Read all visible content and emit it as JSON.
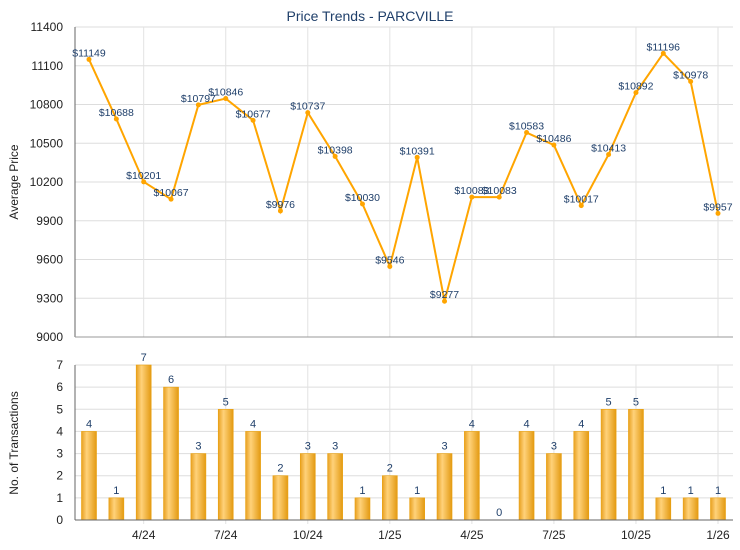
{
  "chart_data": [
    {
      "type": "line",
      "title": "Price Trends - PARCVILLE",
      "xlabel": "",
      "ylabel": "Average Price",
      "ylim": [
        9000,
        11400
      ],
      "yticks": [
        9000,
        9300,
        9600,
        9900,
        10200,
        10500,
        10800,
        11100,
        11400
      ],
      "grid": true,
      "color": "#FFA500",
      "value_prefix": "$",
      "values": [
        11149,
        10688,
        10201,
        10067,
        10797,
        10846,
        10677,
        9976,
        10737,
        10398,
        10030,
        9546,
        10391,
        9277,
        10083,
        10083,
        10583,
        10486,
        10017,
        10413,
        10892,
        11196,
        10978,
        9957
      ]
    },
    {
      "type": "bar",
      "xlabel": "",
      "ylabel": "No. of Transactions",
      "ylim": [
        0,
        7
      ],
      "yticks": [
        0,
        1,
        2,
        3,
        4,
        5,
        6,
        7
      ],
      "grid": true,
      "color": "#F5B335",
      "values": [
        4,
        1,
        7,
        6,
        3,
        5,
        4,
        2,
        3,
        3,
        1,
        2,
        1,
        3,
        4,
        0,
        4,
        3,
        4,
        5,
        5,
        1,
        1,
        1
      ],
      "xtick_labels": [
        {
          "index": 2,
          "label": "4/24"
        },
        {
          "index": 5,
          "label": "7/24"
        },
        {
          "index": 8,
          "label": "10/24"
        },
        {
          "index": 11,
          "label": "1/25"
        },
        {
          "index": 14,
          "label": "4/25"
        },
        {
          "index": 17,
          "label": "7/25"
        },
        {
          "index": 20,
          "label": "10/25"
        },
        {
          "index": 23,
          "label": "1/26"
        }
      ]
    }
  ]
}
